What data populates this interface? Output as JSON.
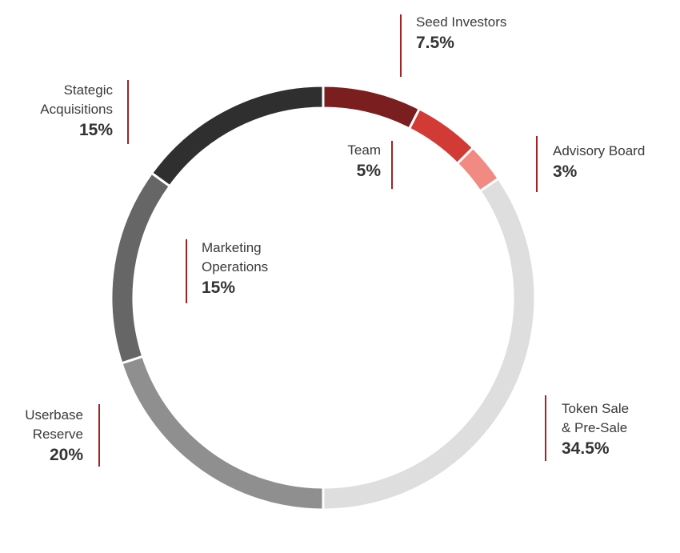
{
  "chart_data": {
    "type": "pie",
    "title": "",
    "series": [
      {
        "categories": [
          "Seed Investors",
          "Team",
          "Advisory Board",
          "Token Sale & Pre-Sale",
          "Userbase Reserve",
          "Marketing Operations",
          "Stategic Acquisitions"
        ],
        "values": [
          7.5,
          5,
          3,
          34.5,
          20,
          15,
          15
        ]
      }
    ],
    "colors": [
      "#7a1e20",
      "#d23a36",
      "#f08a82",
      "#dedede",
      "#8f8f8f",
      "#666666",
      "#2f2f2f"
    ],
    "hole": true,
    "legend": "none"
  },
  "labels": [
    {
      "name": "Seed Investors",
      "pct": "7.5%"
    },
    {
      "name": "Team",
      "pct": "5%"
    },
    {
      "name": "Advisory Board",
      "pct": "3%"
    },
    {
      "name": "Token Sale\n& Pre-Sale",
      "pct": "34.5%"
    },
    {
      "name": "Userbase\nReserve",
      "pct": "20%"
    },
    {
      "name": "Marketing\nOperations",
      "pct": "15%"
    },
    {
      "name": "Stategic\nAcquisitions",
      "pct": "15%"
    }
  ]
}
